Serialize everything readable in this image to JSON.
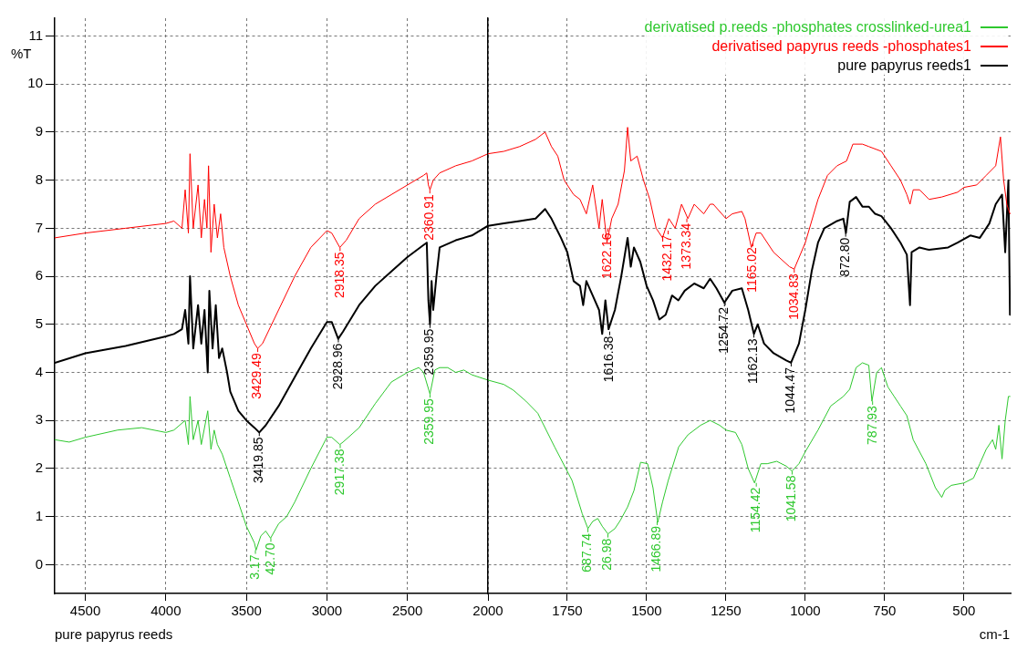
{
  "chart_data": [
    {
      "type": "line",
      "ylabel": "%T",
      "grid": true,
      "xlim": [
        4690,
        2000
      ],
      "xticks": [
        4500,
        4000,
        3500,
        3000,
        2500
      ],
      "ylim": [
        -0.6,
        11.37
      ],
      "yticks": [
        0,
        1,
        2,
        3,
        4,
        5,
        6,
        7,
        8,
        9,
        10,
        11
      ],
      "series": [
        {
          "color": "#2ec82e",
          "x": [
            4690,
            4600,
            4500,
            4300,
            4150,
            4000,
            3950,
            3880,
            3860,
            3850,
            3830,
            3800,
            3780,
            3740,
            3720,
            3700,
            3680,
            3650,
            3600,
            3550,
            3500,
            3450,
            3440,
            3410,
            3380,
            3350,
            3300,
            3250,
            3200,
            3100,
            3000,
            2970,
            2920,
            2900,
            2800,
            2700,
            2600,
            2500,
            2430,
            2400,
            2360,
            2330,
            2300,
            2250,
            2200,
            2150,
            2100,
            2000
          ],
          "values": [
            2.6,
            2.55,
            2.65,
            2.8,
            2.85,
            2.75,
            2.8,
            3.0,
            2.5,
            3.5,
            2.6,
            3.0,
            2.5,
            3.2,
            2.4,
            2.8,
            2.5,
            2.3,
            1.8,
            1.3,
            0.8,
            0.45,
            0.3,
            0.6,
            0.7,
            0.55,
            0.85,
            1.0,
            1.3,
            2.0,
            2.65,
            2.65,
            2.5,
            2.55,
            2.85,
            3.35,
            3.8,
            4.0,
            4.1,
            4.0,
            3.55,
            4.05,
            4.1,
            4.1,
            4.0,
            4.05,
            3.95,
            3.84
          ]
        },
        {
          "color": "#ff0000",
          "x": [
            4690,
            4500,
            4250,
            4000,
            3950,
            3900,
            3880,
            3860,
            3850,
            3830,
            3800,
            3780,
            3760,
            3745,
            3735,
            3720,
            3700,
            3680,
            3660,
            3640,
            3600,
            3550,
            3500,
            3450,
            3430,
            3400,
            3300,
            3200,
            3100,
            3000,
            2970,
            2920,
            2880,
            2800,
            2700,
            2600,
            2500,
            2400,
            2380,
            2370,
            2360,
            2340,
            2300,
            2200,
            2100,
            2000
          ],
          "values": [
            6.8,
            6.9,
            7.0,
            7.1,
            7.15,
            7.0,
            7.8,
            6.9,
            8.55,
            7.0,
            7.9,
            6.8,
            7.6,
            7.0,
            8.3,
            6.5,
            7.5,
            6.8,
            7.3,
            6.6,
            6.0,
            5.4,
            5.0,
            4.6,
            4.5,
            4.6,
            5.3,
            6.0,
            6.6,
            6.95,
            6.9,
            6.6,
            6.75,
            7.2,
            7.5,
            7.7,
            7.9,
            8.1,
            8.15,
            7.9,
            7.8,
            8.0,
            8.15,
            8.3,
            8.4,
            8.55
          ]
        },
        {
          "color": "#000000",
          "x": [
            4690,
            4500,
            4250,
            4000,
            3950,
            3900,
            3880,
            3860,
            3850,
            3830,
            3800,
            3780,
            3760,
            3740,
            3730,
            3710,
            3690,
            3670,
            3650,
            3620,
            3600,
            3550,
            3500,
            3450,
            3420,
            3380,
            3300,
            3200,
            3100,
            3000,
            2970,
            2930,
            2900,
            2800,
            2700,
            2600,
            2500,
            2400,
            2380,
            2370,
            2360,
            2350,
            2340,
            2320,
            2300,
            2200,
            2100,
            2000
          ],
          "values": [
            4.2,
            4.4,
            4.55,
            4.75,
            4.8,
            4.9,
            5.3,
            4.6,
            6.0,
            4.5,
            5.4,
            4.6,
            5.3,
            4.0,
            5.7,
            4.5,
            5.4,
            4.3,
            4.5,
            4.0,
            3.6,
            3.2,
            3.0,
            2.85,
            2.75,
            2.9,
            3.3,
            3.9,
            4.5,
            5.05,
            5.05,
            4.7,
            4.85,
            5.4,
            5.8,
            6.1,
            6.4,
            6.65,
            6.7,
            5.5,
            5.0,
            5.9,
            5.3,
            6.0,
            6.6,
            6.75,
            6.85,
            7.05
          ]
        }
      ],
      "annotations": [
        {
          "text": "3429.49",
          "x": 3429.49,
          "y": 4.5
        },
        {
          "text": "2918.35",
          "x": 2918.35,
          "y": 6.6
        },
        {
          "text": "2360.91",
          "x": 2360.91,
          "y": 7.8
        },
        {
          "text": "3419.85",
          "x": 3419.85,
          "y": 2.75
        },
        {
          "text": "2928.96",
          "x": 2928.96,
          "y": 4.7
        },
        {
          "text": "2359.95",
          "x": 2359.95,
          "y": 5.0
        },
        {
          "text": "3.17",
          "x": 3444,
          "y": 0.3
        },
        {
          "text": "42.70",
          "x": 3348,
          "y": 0.55
        },
        {
          "text": "2917.38",
          "x": 2917.38,
          "y": 2.5
        },
        {
          "text": "2359.95",
          "x": 2359.95,
          "y": 3.55
        },
        "pure papyrus reeds"
      ]
    },
    {
      "type": "line",
      "xlabel": "cm-1",
      "legend": "top right",
      "grid": true,
      "tick_labels": "x",
      "xlim": [
        2000,
        353
      ],
      "xticks": [
        2000,
        1750,
        1500,
        1250,
        1000,
        750,
        500
      ],
      "ylim": [
        -0.6,
        11.37
      ],
      "yticks": [
        0,
        1,
        2,
        3,
        4,
        5,
        6,
        7,
        8,
        9,
        10,
        11
      ],
      "series": [
        {
          "name": "derivatised p.reeds -phosphates crosslinked-urea1",
          "color": "#2ec82e",
          "x": [
            2000,
            1950,
            1920,
            1880,
            1843,
            1790,
            1735,
            1703,
            1685,
            1670,
            1654,
            1640,
            1622,
            1600,
            1583,
            1560,
            1540,
            1519,
            1497,
            1480,
            1465,
            1450,
            1432,
            1399,
            1370,
            1330,
            1300,
            1270,
            1250,
            1220,
            1200,
            1180,
            1160,
            1140,
            1120,
            1090,
            1060,
            1042,
            1020,
            1000,
            960,
            920,
            880,
            860,
            840,
            820,
            800,
            790,
            775,
            760,
            740,
            720,
            700,
            680,
            660,
            620,
            590,
            570,
            560,
            540,
            500,
            470,
            450,
            430,
            410,
            400,
            390,
            380,
            370,
            360,
            355
          ],
          "values": [
            3.84,
            3.75,
            3.63,
            3.4,
            3.15,
            2.45,
            1.75,
            1.06,
            0.75,
            0.9,
            0.96,
            0.8,
            0.64,
            0.75,
            0.92,
            1.2,
            1.54,
            2.13,
            2.1,
            1.6,
            0.88,
            1.3,
            1.75,
            2.45,
            2.7,
            2.9,
            3.0,
            2.9,
            2.8,
            2.75,
            2.5,
            2.0,
            1.7,
            2.1,
            2.1,
            2.15,
            2.05,
            1.95,
            2.1,
            2.35,
            2.8,
            3.3,
            3.5,
            3.65,
            4.1,
            4.2,
            4.15,
            3.4,
            4.0,
            4.1,
            3.7,
            3.5,
            3.3,
            3.1,
            2.6,
            2.1,
            1.6,
            1.4,
            1.55,
            1.65,
            1.7,
            1.8,
            2.1,
            2.4,
            2.6,
            2.4,
            2.9,
            2.2,
            3.0,
            3.5,
            3.5
          ]
        },
        {
          "name": "derivatised papyrus reeds -phosphates1",
          "color": "#ff0000",
          "x": [
            2000,
            1950,
            1900,
            1850,
            1820,
            1800,
            1780,
            1760,
            1730,
            1710,
            1690,
            1670,
            1650,
            1640,
            1625,
            1610,
            1590,
            1570,
            1560,
            1550,
            1530,
            1510,
            1490,
            1470,
            1450,
            1430,
            1410,
            1390,
            1370,
            1350,
            1320,
            1300,
            1290,
            1250,
            1230,
            1200,
            1190,
            1170,
            1155,
            1140,
            1100,
            1050,
            1035,
            1000,
            960,
            930,
            900,
            870,
            850,
            820,
            800,
            760,
            730,
            700,
            680,
            670,
            660,
            640,
            610,
            570,
            520,
            500,
            460,
            430,
            400,
            385,
            375,
            365,
            355
          ],
          "values": [
            8.55,
            8.6,
            8.7,
            8.85,
            9.0,
            8.7,
            8.5,
            8.0,
            7.7,
            7.6,
            7.3,
            7.9,
            7.0,
            7.6,
            6.7,
            7.2,
            7.5,
            8.2,
            9.1,
            8.4,
            8.5,
            8.0,
            7.6,
            7.0,
            6.8,
            7.2,
            7.0,
            7.5,
            7.2,
            7.5,
            7.3,
            7.5,
            7.5,
            7.2,
            7.3,
            7.35,
            7.2,
            6.6,
            6.9,
            6.9,
            6.5,
            6.2,
            6.15,
            6.7,
            7.6,
            8.1,
            8.3,
            8.4,
            8.75,
            8.75,
            8.7,
            8.6,
            8.3,
            8.0,
            7.7,
            7.5,
            7.8,
            7.8,
            7.6,
            7.65,
            7.75,
            7.85,
            7.9,
            8.1,
            8.3,
            8.9,
            8.0,
            7.5,
            7.3
          ]
        },
        {
          "name": "pure papyrus reeds1",
          "color": "#000000",
          "x": [
            2000,
            1950,
            1900,
            1850,
            1820,
            1800,
            1770,
            1750,
            1730,
            1710,
            1700,
            1690,
            1670,
            1650,
            1640,
            1630,
            1620,
            1600,
            1580,
            1570,
            1560,
            1550,
            1540,
            1520,
            1500,
            1480,
            1460,
            1440,
            1420,
            1400,
            1380,
            1350,
            1320,
            1300,
            1280,
            1255,
            1230,
            1200,
            1180,
            1162,
            1150,
            1130,
            1100,
            1060,
            1045,
            1020,
            1000,
            980,
            960,
            940,
            900,
            880,
            872,
            860,
            840,
            820,
            800,
            780,
            760,
            730,
            700,
            680,
            670,
            665,
            640,
            610,
            550,
            520,
            480,
            450,
            420,
            400,
            380,
            370,
            360,
            355
          ],
          "values": [
            7.05,
            7.1,
            7.15,
            7.2,
            7.4,
            7.2,
            6.8,
            6.5,
            5.9,
            5.8,
            5.4,
            5.9,
            5.6,
            5.3,
            4.8,
            5.5,
            4.9,
            5.3,
            6.0,
            6.4,
            6.8,
            6.2,
            6.6,
            6.3,
            5.8,
            5.5,
            5.1,
            5.2,
            5.6,
            5.5,
            5.7,
            5.85,
            5.75,
            5.95,
            5.75,
            5.45,
            5.7,
            5.75,
            5.3,
            4.8,
            5.0,
            4.6,
            4.4,
            4.25,
            4.2,
            4.6,
            5.3,
            6.1,
            6.7,
            7.0,
            7.15,
            7.2,
            6.9,
            7.55,
            7.65,
            7.45,
            7.45,
            7.3,
            7.25,
            7.0,
            6.7,
            6.45,
            5.4,
            6.5,
            6.6,
            6.55,
            6.6,
            6.7,
            6.85,
            6.8,
            7.1,
            7.5,
            7.7,
            6.5,
            8.0,
            5.2
          ]
        }
      ],
      "annotations": [
        {
          "text": "1622.16",
          "x": 1622.16,
          "y": 7.0
        },
        {
          "text": "1432.17",
          "x": 1432.17,
          "y": 6.95
        },
        {
          "text": "1373.34",
          "x": 1373.34,
          "y": 7.2
        },
        {
          "text": "1165.02",
          "x": 1165.02,
          "y": 6.7
        },
        {
          "text": "1034.83",
          "x": 1034.83,
          "y": 6.15
        },
        {
          "text": "1616.38",
          "x": 1616.38,
          "y": 4.85
        },
        {
          "text": "1254.72",
          "x": 1254.72,
          "y": 5.45
        },
        {
          "text": "1162.13",
          "x": 1162.13,
          "y": 4.8
        },
        {
          "text": "1044.47",
          "x": 1044.47,
          "y": 4.2
        },
        {
          "text": "872.80",
          "x": 872.8,
          "y": 6.9
        },
        {
          "text": "687.74",
          "x": 1685,
          "y": 0.75
        },
        {
          "text": "26.98",
          "x": 1622,
          "y": 0.64
        },
        {
          "text": "1466.89",
          "x": 1466.89,
          "y": 0.9
        },
        {
          "text": "1154.42",
          "x": 1154.42,
          "y": 1.7
        },
        {
          "text": "1041.58",
          "x": 1041.58,
          "y": 1.95
        },
        {
          "text": "787.93",
          "x": 787.93,
          "y": 3.4
        }
      ]
    }
  ]
}
